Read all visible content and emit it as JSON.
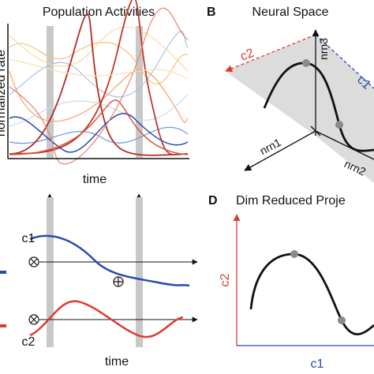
{
  "panel_a": {
    "title": "Population Activities",
    "y_label": "normalized rate",
    "x_label": "time"
  },
  "panel_b": {
    "letter": "B",
    "title": "Neural Space",
    "plane_axis_1": "c2",
    "plane_axis_2": "c1",
    "axis_z": "nrn3",
    "axis_x": "nrn1",
    "axis_y": "nrn2"
  },
  "panel_c": {
    "trace_1": "c1",
    "trace_2": "c2",
    "x_label": "time"
  },
  "panel_d": {
    "letter": "D",
    "title": "Dim Reduced Proje",
    "y_label": "c2",
    "x_label": "c1"
  }
}
